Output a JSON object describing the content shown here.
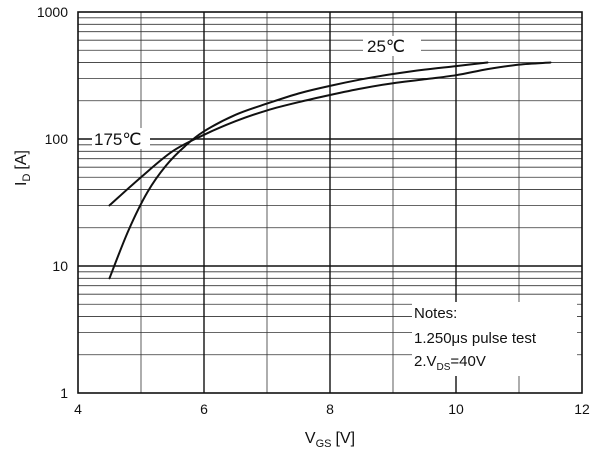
{
  "chart_data": {
    "type": "line",
    "title": "",
    "xlabel": {
      "main": "V",
      "sub": "GS",
      "unit": "[V]"
    },
    "ylabel": {
      "main": "I",
      "sub": "D",
      "unit": "[A]"
    },
    "xlim": [
      4,
      12
    ],
    "ylim": [
      1,
      1000
    ],
    "yscale": "log",
    "grid": true,
    "x_ticks": [
      "4",
      "6",
      "8",
      "10",
      "12"
    ],
    "y_ticks": [
      "1",
      "10",
      "100",
      "1000"
    ],
    "series": [
      {
        "name": "25℃",
        "color": "#111111",
        "points": [
          [
            4.5,
            8
          ],
          [
            4.8,
            19
          ],
          [
            5.1,
            38
          ],
          [
            5.4,
            62
          ],
          [
            5.7,
            88
          ],
          [
            6.0,
            115
          ],
          [
            6.5,
            155
          ],
          [
            7.0,
            190
          ],
          [
            7.5,
            228
          ],
          [
            8.0,
            262
          ],
          [
            8.5,
            295
          ],
          [
            9.0,
            325
          ],
          [
            9.5,
            352
          ],
          [
            10.0,
            375
          ],
          [
            10.5,
            400
          ]
        ]
      },
      {
        "name": "175℃",
        "color": "#111111",
        "points": [
          [
            4.5,
            30
          ],
          [
            5.0,
            50
          ],
          [
            5.5,
            80
          ],
          [
            6.0,
            108
          ],
          [
            6.5,
            138
          ],
          [
            7.0,
            168
          ],
          [
            7.5,
            195
          ],
          [
            8.0,
            222
          ],
          [
            8.5,
            250
          ],
          [
            9.0,
            275
          ],
          [
            9.5,
            295
          ],
          [
            10.0,
            318
          ],
          [
            10.5,
            355
          ],
          [
            11.0,
            385
          ],
          [
            11.5,
            400
          ]
        ]
      }
    ],
    "annotations": {
      "label_25": "25℃",
      "label_175": "175℃"
    },
    "notes": {
      "title": "Notes:",
      "line1": "1.250μs pulse test",
      "line2_prefix": "2.V",
      "line2_sub": "DS",
      "line2_suffix": "=40V"
    }
  }
}
